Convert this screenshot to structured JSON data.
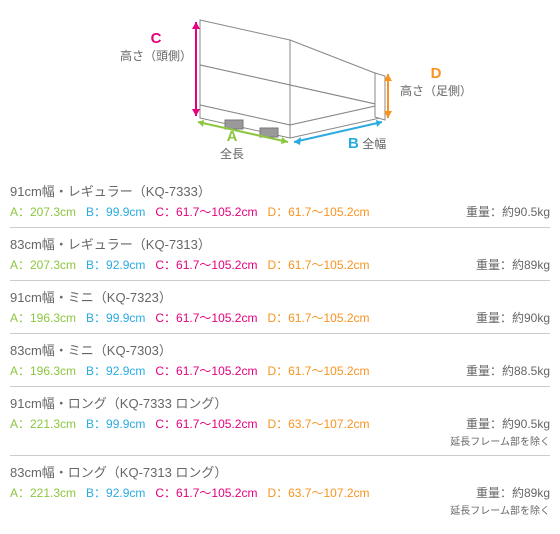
{
  "diagram": {
    "labels": {
      "c": "C",
      "c_text": "高さ（頭側）",
      "d": "D",
      "d_text": "高さ（足側）",
      "a": "A",
      "a_text": "全長",
      "b": "B",
      "b_text": "全幅"
    },
    "colors": {
      "c": "#e4007f",
      "d": "#f7931e",
      "a": "#8cc63f",
      "b": "#29abe2",
      "outline": "#888888",
      "fill": "#ffffff"
    }
  },
  "rows": [
    {
      "title": "91cm幅・レギュラー（KQ-7333）",
      "a": "A：207.3cm",
      "b": "B：99.9cm",
      "c": "C：61.7〜105.2cm",
      "d": "D：61.7〜105.2cm",
      "weight": "重量：約90.5kg",
      "note": ""
    },
    {
      "title": "83cm幅・レギュラー（KQ-7313）",
      "a": "A：207.3cm",
      "b": "B：92.9cm",
      "c": "C：61.7〜105.2cm",
      "d": "D：61.7〜105.2cm",
      "weight": "重量：約89kg",
      "note": ""
    },
    {
      "title": "91cm幅・ミニ（KQ-7323）",
      "a": "A：196.3cm",
      "b": "B：99.9cm",
      "c": "C：61.7〜105.2cm",
      "d": "D：61.7〜105.2cm",
      "weight": "重量：約90kg",
      "note": ""
    },
    {
      "title": "83cm幅・ミニ（KQ-7303）",
      "a": "A：196.3cm",
      "b": "B：92.9cm",
      "c": "C：61.7〜105.2cm",
      "d": "D：61.7〜105.2cm",
      "weight": "重量：約88.5kg",
      "note": ""
    },
    {
      "title": "91cm幅・ロング（KQ-7333 ロング）",
      "a": "A：221.3cm",
      "b": "B：99.9cm",
      "c": "C：61.7〜105.2cm",
      "d": "D：63.7〜107.2cm",
      "weight": "重量：約90.5kg",
      "note": "延長フレーム部を除く"
    },
    {
      "title": "83cm幅・ロング（KQ-7313 ロング）",
      "a": "A：221.3cm",
      "b": "B：92.9cm",
      "c": "C：61.7〜105.2cm",
      "d": "D：63.7〜107.2cm",
      "weight": "重量：約89kg",
      "note": "延長フレーム部を除く"
    }
  ]
}
